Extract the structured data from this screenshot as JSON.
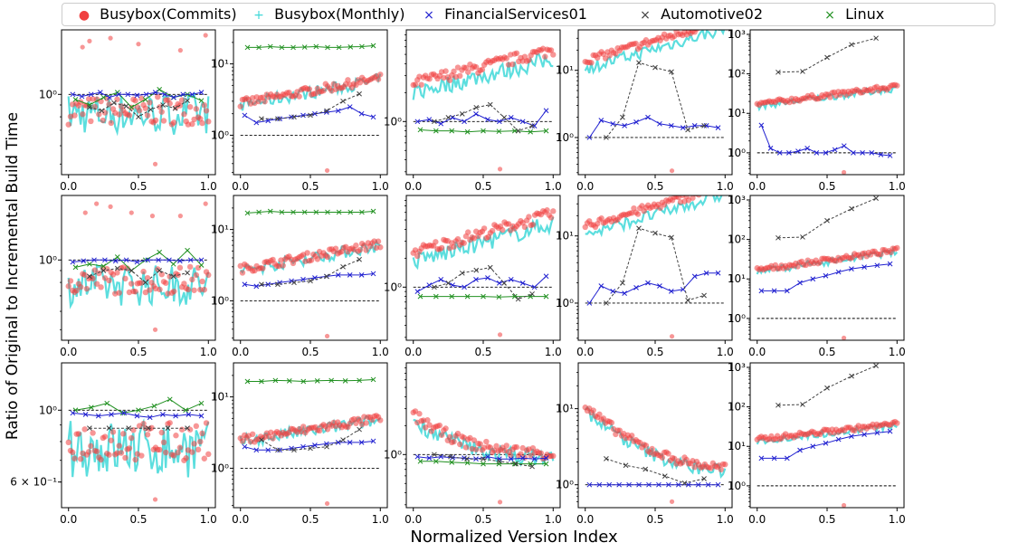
{
  "figure": {
    "ylabel": "Ratio of Original to Incremental Build Time",
    "xlabel": "Normalized Version Index"
  },
  "legend": [
    {
      "name": "Busybox(Commits)",
      "marker": "●",
      "color": "#f04040"
    },
    {
      "name": "Busybox(Monthly)",
      "marker": "+",
      "color": "#40d8d8"
    },
    {
      "name": "FinancialServices01",
      "marker": "×",
      "color": "#2020d0"
    },
    {
      "name": "Automotive02",
      "marker": "×",
      "color": "#404040"
    },
    {
      "name": "Linux",
      "marker": "×",
      "color": "#209020"
    }
  ],
  "chart_data": [
    {
      "type": "scatter",
      "row": 0,
      "col": 0,
      "log": true,
      "ylim": [
        0.45,
        1.9
      ],
      "yticks": [
        {
          "v": 1,
          "label": "10⁰"
        }
      ],
      "xticks": [
        0,
        0.5,
        1
      ],
      "xlim": [
        -0.05,
        1.05
      ],
      "bc_center": 0.85,
      "bc_slope": 0,
      "bm_offset": 0.97,
      "fs": [
        1.0,
        0.98,
        1.0,
        1.02,
        0.97,
        1.0,
        1.0,
        0.99,
        1.0,
        1.02,
        1.0,
        0.97,
        1.0,
        1.0,
        1.02
      ],
      "au": [
        0.88,
        0.85,
        0.92,
        0.89,
        0.8,
        0.86,
        0.9,
        0.87,
        0.94
      ],
      "li": [
        0.95,
        0.9,
        0.97,
        1.02,
        0.88,
        0.95,
        1.05,
        0.97,
        1.0,
        0.94
      ],
      "outliers": [
        [
          0.62,
          0.5
        ],
        [
          0.1,
          1.6
        ],
        [
          0.15,
          1.7
        ],
        [
          0.3,
          1.75
        ],
        [
          0.5,
          1.65
        ],
        [
          0.8,
          1.55
        ],
        [
          0.98,
          1.8
        ]
      ],
      "dashed": 1
    },
    {
      "type": "scatter",
      "row": 0,
      "col": 1,
      "log": true,
      "ylim": [
        0.28,
        30
      ],
      "yticks": [
        {
          "v": 1,
          "label": "10⁰"
        },
        {
          "v": 10,
          "label": "10¹"
        }
      ],
      "xticks": [
        0,
        0.5,
        1
      ],
      "xlim": [
        -0.05,
        1.05
      ],
      "bc_center": 2.8,
      "bc_slope": 0.35,
      "bm_offset": 0.95,
      "fs": [
        1.9,
        1.5,
        1.6,
        1.7,
        1.8,
        1.9,
        2.0,
        2.1,
        2.2,
        2.5,
        2.0,
        1.8
      ],
      "au": [
        1.7,
        1.7,
        1.8,
        1.9,
        2.2,
        3.0,
        3.8
      ],
      "li": [
        17,
        17,
        17.5,
        17,
        17,
        17.2,
        17.5,
        17,
        17,
        17.3,
        17.5,
        18
      ],
      "outliers": [
        [
          0.62,
          0.32
        ]
      ],
      "dashed": 1
    },
    {
      "type": "scatter",
      "row": 0,
      "col": 2,
      "log": true,
      "ylim": [
        0.28,
        9
      ],
      "yticks": [
        {
          "v": 1,
          "label": "10⁰"
        }
      ],
      "xticks": [
        0,
        0.5,
        1
      ],
      "xlim": [
        -0.05,
        1.05
      ],
      "bc_center": 2.5,
      "bc_slope": 0.35,
      "bm_offset": 0.8,
      "fs": [
        1.0,
        1.05,
        0.95,
        1.1,
        1.0,
        1.2,
        1.05,
        1.0,
        1.1,
        1.0,
        0.9,
        1.3
      ],
      "au": [
        1.0,
        1.1,
        1.2,
        1.4,
        1.5,
        1.1,
        0.8,
        0.9
      ],
      "li": [
        0.82,
        0.8,
        0.8,
        0.78,
        0.8,
        0.79,
        0.8,
        0.78,
        0.8
      ],
      "outliers": [
        [
          0.62,
          0.32
        ]
      ],
      "dashed": 1
    },
    {
      "type": "scatter",
      "row": 0,
      "col": 3,
      "log": true,
      "ylim": [
        0.28,
        40
      ],
      "yticks": [
        {
          "v": 1,
          "label": "10⁰"
        },
        {
          "v": 10,
          "label": "10¹"
        }
      ],
      "xticks": [
        0,
        0.5,
        1
      ],
      "xlim": [
        -0.05,
        1.05
      ],
      "bc_center": 14,
      "bc_slope": 0.6,
      "bm_offset": 0.75,
      "fs": [
        1.0,
        1.8,
        1.6,
        1.5,
        1.7,
        2.0,
        1.6,
        1.5,
        1.4,
        1.5,
        1.5,
        1.4
      ],
      "au": [
        1.0,
        2.0,
        13,
        11,
        9.5,
        1.3,
        1.5
      ],
      "li": [],
      "outliers": [
        [
          0.62,
          0.32
        ]
      ],
      "dashed": 1
    },
    {
      "type": "scatter",
      "row": 0,
      "col": 4,
      "log": true,
      "ylim": [
        0.28,
        1300
      ],
      "yticks": [
        {
          "v": 1,
          "label": "10⁰"
        },
        {
          "v": 10,
          "label": "10¹"
        },
        {
          "v": 100,
          "label": "10²"
        },
        {
          "v": 1000,
          "label": "10³"
        }
      ],
      "xticks": [
        0,
        0.5,
        1
      ],
      "xlim": [
        -0.05,
        1.05
      ],
      "bc_center": 17,
      "bc_slope": 0.45,
      "bm_offset": 0.9,
      "fs": [
        5,
        1.3,
        1.0,
        1.0,
        1.1,
        1.3,
        1.0,
        1.0,
        1.2,
        1.5,
        1.0,
        1.0,
        1.0,
        0.9,
        0.85
      ],
      "au": [
        110,
        115,
        260,
        550,
        800
      ],
      "li": [],
      "outliers": [
        [
          0.62,
          0.32
        ]
      ],
      "dashed": 1
    },
    {
      "type": "scatter",
      "row": 1,
      "col": 0,
      "log": true,
      "ylim": [
        0.45,
        1.9
      ],
      "yticks": [
        {
          "v": 1,
          "label": "10⁰"
        }
      ],
      "xticks": [
        0,
        0.5,
        1
      ],
      "xlim": [
        -0.05,
        1.05
      ],
      "bc_center": 0.82,
      "bc_slope": 0,
      "bm_offset": 0.95,
      "fs": [
        0.98,
        0.99,
        1.0,
        1.0,
        0.99,
        1.0,
        0.98,
        1.0,
        1.0,
        1.0,
        0.99,
        1.0,
        1.0
      ],
      "au": [
        0.85,
        0.9,
        0.92,
        0.9,
        0.8,
        0.9,
        0.85,
        0.88
      ],
      "li": [
        0.93,
        0.96,
        0.94,
        1.03,
        0.9,
        1.0,
        1.08,
        0.96,
        1.1,
        0.95
      ],
      "outliers": [
        [
          0.62,
          0.5
        ],
        [
          0.12,
          1.6
        ],
        [
          0.2,
          1.75
        ],
        [
          0.3,
          1.7
        ],
        [
          0.45,
          1.6
        ],
        [
          0.6,
          1.55
        ],
        [
          0.8,
          1.55
        ],
        [
          0.98,
          1.75
        ]
      ],
      "dashed": 1
    },
    {
      "type": "scatter",
      "row": 1,
      "col": 1,
      "log": true,
      "ylim": [
        0.28,
        30
      ],
      "yticks": [
        {
          "v": 1,
          "label": "10⁰"
        },
        {
          "v": 10,
          "label": "10¹"
        }
      ],
      "xticks": [
        0,
        0.5,
        1
      ],
      "xlim": [
        -0.05,
        1.05
      ],
      "bc_center": 2.8,
      "bc_slope": 0.35,
      "bm_offset": 0.95,
      "fs": [
        1.7,
        1.6,
        1.7,
        1.8,
        1.9,
        2.0,
        2.1,
        2.2,
        2.3,
        2.3,
        2.3,
        2.4
      ],
      "au": [
        1.7,
        1.7,
        1.8,
        1.9,
        2.2,
        3.0,
        3.8
      ],
      "li": [
        17,
        17.5,
        18,
        17.5,
        17.5,
        17.5,
        17.5,
        17.5,
        17.5,
        17.5,
        17.5,
        18
      ],
      "outliers": [
        [
          0.62,
          0.32
        ]
      ],
      "dashed": 1
    },
    {
      "type": "scatter",
      "row": 1,
      "col": 2,
      "log": true,
      "ylim": [
        0.28,
        9
      ],
      "yticks": [
        {
          "v": 1,
          "label": "10⁰"
        }
      ],
      "xticks": [
        0,
        0.5,
        1
      ],
      "xlim": [
        -0.05,
        1.05
      ],
      "bc_center": 2.3,
      "bc_slope": 0.4,
      "bm_offset": 0.8,
      "fs": [
        0.9,
        1.05,
        1.2,
        1.05,
        1.0,
        1.2,
        1.25,
        1.1,
        1.2,
        1.1,
        1.0,
        1.3
      ],
      "au": [
        1.0,
        1.1,
        1.4,
        1.5,
        1.6,
        1.1,
        0.75,
        0.85
      ],
      "li": [
        0.8,
        0.8,
        0.8,
        0.8,
        0.8,
        0.79,
        0.8,
        0.8,
        0.8
      ],
      "outliers": [
        [
          0.62,
          0.32
        ]
      ],
      "dashed": 1
    },
    {
      "type": "scatter",
      "row": 1,
      "col": 3,
      "log": true,
      "ylim": [
        0.28,
        40
      ],
      "yticks": [
        {
          "v": 1,
          "label": "10⁰"
        },
        {
          "v": 10,
          "label": "10¹"
        }
      ],
      "xticks": [
        0,
        0.5,
        1
      ],
      "xlim": [
        -0.05,
        1.05
      ],
      "bc_center": 14,
      "bc_slope": 0.6,
      "bm_offset": 0.75,
      "fs": [
        1.0,
        1.8,
        1.5,
        1.4,
        1.7,
        2.0,
        1.8,
        1.5,
        1.6,
        2.5,
        2.8,
        2.8
      ],
      "au": [
        1.0,
        2.0,
        13,
        11,
        9.5,
        1.1,
        1.3
      ],
      "li": [],
      "outliers": [
        [
          0.62,
          0.32
        ]
      ],
      "dashed": 1
    },
    {
      "type": "scatter",
      "row": 1,
      "col": 4,
      "log": true,
      "ylim": [
        0.28,
        1300
      ],
      "yticks": [
        {
          "v": 1,
          "label": "10⁰"
        },
        {
          "v": 10,
          "label": "10¹"
        },
        {
          "v": 100,
          "label": "10²"
        },
        {
          "v": 1000,
          "label": "10³"
        }
      ],
      "xticks": [
        0,
        0.5,
        1
      ],
      "xlim": [
        -0.05,
        1.05
      ],
      "bc_center": 17,
      "bc_slope": 0.5,
      "bm_offset": 0.9,
      "fs": [
        5,
        5,
        5,
        8,
        10,
        12,
        15,
        18,
        20,
        22,
        24
      ],
      "au": [
        110,
        115,
        300,
        600,
        1100
      ],
      "li": [],
      "outliers": [
        [
          0.62,
          0.32
        ]
      ],
      "dashed": 1
    },
    {
      "type": "scatter",
      "row": 2,
      "col": 0,
      "log": true,
      "ylim": [
        0.5,
        1.4
      ],
      "yticks": [
        {
          "v": 1,
          "label": "10⁰"
        },
        {
          "v": 0.6,
          "label": "6 × 10⁻¹"
        }
      ],
      "xticks": [
        0,
        0.5,
        1
      ],
      "xlim": [
        -0.05,
        1.05
      ],
      "bc_center": 0.8,
      "bc_slope": 0,
      "bm_offset": 0.95,
      "fs": [
        0.98,
        0.97,
        0.96,
        0.97,
        0.98,
        0.96,
        0.95,
        0.97,
        0.96,
        0.97,
        0.96
      ],
      "au": [
        0.88,
        0.88,
        0.88,
        0.88,
        0.88,
        0.88
      ],
      "li": [
        1.0,
        1.02,
        1.05,
        0.98,
        1.0,
        1.03,
        1.08,
        1.0,
        1.05
      ],
      "outliers": [
        [
          0.62,
          0.53
        ]
      ],
      "dashed": 1
    },
    {
      "type": "scatter",
      "row": 2,
      "col": 1,
      "log": true,
      "ylim": [
        0.28,
        30
      ],
      "yticks": [
        {
          "v": 1,
          "label": "10⁰"
        },
        {
          "v": 10,
          "label": "10¹"
        }
      ],
      "xticks": [
        0,
        0.5,
        1
      ],
      "xlim": [
        -0.05,
        1.05
      ],
      "bc_center": 2.5,
      "bc_slope": 0.3,
      "bm_offset": 0.95,
      "fs": [
        2.0,
        1.8,
        1.8,
        1.8,
        1.9,
        2.0,
        2.1,
        2.2,
        2.3,
        2.3,
        2.3,
        2.4
      ],
      "au": [
        2.5,
        1.8,
        1.8,
        1.9,
        2.0,
        2.5,
        3.5
      ],
      "li": [
        16.5,
        16.5,
        17,
        16.8,
        16.5,
        16.8,
        17,
        16.8,
        17,
        17.5
      ],
      "outliers": [
        [
          0.62,
          0.32
        ]
      ],
      "dashed": 1
    },
    {
      "type": "scatter",
      "row": 2,
      "col": 2,
      "log": true,
      "ylim": [
        0.28,
        9
      ],
      "yticks": [
        {
          "v": 1,
          "label": "10⁰"
        }
      ],
      "xticks": [
        0,
        0.5,
        1
      ],
      "xlim": [
        -0.05,
        1.05
      ],
      "bc_center": 1.0,
      "bc_slope": -0.7,
      "bm_offset": 0.9,
      "fs": [
        0.95,
        0.92,
        0.95,
        0.93,
        0.92,
        0.9,
        0.95,
        0.9,
        0.9,
        0.92,
        0.9,
        0.92
      ],
      "au": [
        1.0,
        0.95,
        0.9,
        0.9,
        0.85,
        0.8,
        0.75
      ],
      "li": [
        0.85,
        0.85,
        0.83,
        0.82,
        0.8,
        0.8,
        0.8,
        0.8,
        0.8
      ],
      "outliers": [
        [
          0.62,
          0.32
        ]
      ],
      "dashed": 1,
      "decay": true
    },
    {
      "type": "scatter",
      "row": 2,
      "col": 3,
      "log": true,
      "ylim": [
        0.5,
        40
      ],
      "yticks": [
        {
          "v": 1,
          "label": "10⁰"
        },
        {
          "v": 10,
          "label": "10¹"
        }
      ],
      "xticks": [
        0,
        0.5,
        1
      ],
      "xlim": [
        -0.05,
        1.05
      ],
      "bc_center": 1.5,
      "bc_slope": -0.9,
      "bm_offset": 0.9,
      "fs": [
        1.0,
        1.0,
        1.0,
        1.0,
        1.0,
        1.0,
        1.0,
        1.0,
        1.0,
        1.0,
        1.0,
        1.0,
        1.0,
        1.0
      ],
      "au": [
        2.2,
        1.8,
        1.6,
        1.3,
        1.05,
        1.2
      ],
      "li": [],
      "outliers": [
        [
          0.62,
          0.6
        ]
      ],
      "dashed": 1,
      "decay": true
    },
    {
      "type": "scatter",
      "row": 2,
      "col": 4,
      "log": true,
      "ylim": [
        0.28,
        1300
      ],
      "yticks": [
        {
          "v": 1,
          "label": "10⁰"
        },
        {
          "v": 10,
          "label": "10¹"
        },
        {
          "v": 100,
          "label": "10²"
        },
        {
          "v": 1000,
          "label": "10³"
        }
      ],
      "xticks": [
        0,
        0.5,
        1
      ],
      "xlim": [
        -0.05,
        1.05
      ],
      "bc_center": 15,
      "bc_slope": 0.4,
      "bm_offset": 0.9,
      "fs": [
        5,
        5,
        5,
        8,
        10,
        12,
        15,
        18,
        20,
        22,
        24
      ],
      "au": [
        110,
        115,
        300,
        600,
        1100
      ],
      "li": [],
      "outliers": [
        [
          0.62,
          0.32
        ]
      ],
      "dashed": 1
    }
  ]
}
